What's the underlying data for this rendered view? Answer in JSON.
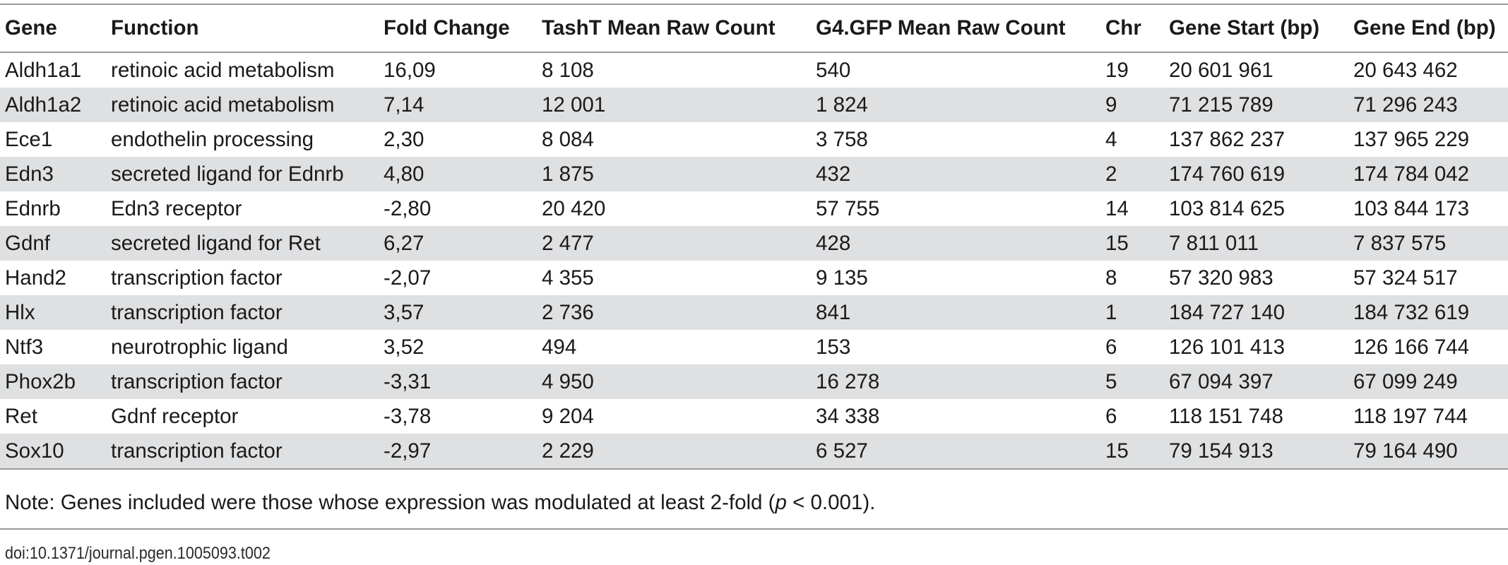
{
  "table": {
    "headers": [
      "Gene",
      "Function",
      "Fold Change",
      "TashT Mean Raw Count",
      "G4.GFP Mean Raw Count",
      "Chr",
      "Gene Start (bp)",
      "Gene End (bp)"
    ],
    "rows": [
      [
        "Aldh1a1",
        "retinoic acid metabolism",
        "16,09",
        "8 108",
        "540",
        "19",
        "20 601 961",
        "20 643 462"
      ],
      [
        "Aldh1a2",
        "retinoic acid metabolism",
        "7,14",
        "12 001",
        "1 824",
        "9",
        "71 215 789",
        "71 296 243"
      ],
      [
        "Ece1",
        "endothelin processing",
        "2,30",
        "8 084",
        "3 758",
        "4",
        "137 862 237",
        "137 965 229"
      ],
      [
        "Edn3",
        "secreted ligand for Ednrb",
        "4,80",
        "1 875",
        "432",
        "2",
        "174 760 619",
        "174 784 042"
      ],
      [
        "Ednrb",
        "Edn3 receptor",
        "-2,80",
        "20 420",
        "57 755",
        "14",
        "103 814 625",
        "103 844 173"
      ],
      [
        "Gdnf",
        "secreted ligand for Ret",
        "6,27",
        "2 477",
        "428",
        "15",
        "7 811 011",
        "7 837 575"
      ],
      [
        "Hand2",
        "transcription factor",
        "-2,07",
        "4 355",
        "9 135",
        "8",
        "57 320 983",
        "57 324 517"
      ],
      [
        "Hlx",
        "transcription factor",
        "3,57",
        "2 736",
        "841",
        "1",
        "184 727 140",
        "184 732 619"
      ],
      [
        "Ntf3",
        "neurotrophic ligand",
        "3,52",
        "494",
        "153",
        "6",
        "126 101 413",
        "126 166 744"
      ],
      [
        "Phox2b",
        "transcription factor",
        "-3,31",
        "4 950",
        "16 278",
        "5",
        "67 094 397",
        "67 099 249"
      ],
      [
        "Ret",
        "Gdnf receptor",
        "-3,78",
        "9 204",
        "34 338",
        "6",
        "118 151 748",
        "118 197 744"
      ],
      [
        "Sox10",
        "transcription factor",
        "-2,97",
        "2 229",
        "6 527",
        "15",
        "79 154 913",
        "79 164 490"
      ]
    ]
  },
  "note": {
    "prefix": "Note: Genes included were those whose expression was modulated at least 2-fold (",
    "p_symbol": "p",
    "suffix": " < 0.001)."
  },
  "doi": "doi:10.1371/journal.pgen.1005093.t002",
  "colors": {
    "stripe": "#dfe0e2",
    "rule": "#9a9a9a",
    "text": "#1a1a1a"
  }
}
